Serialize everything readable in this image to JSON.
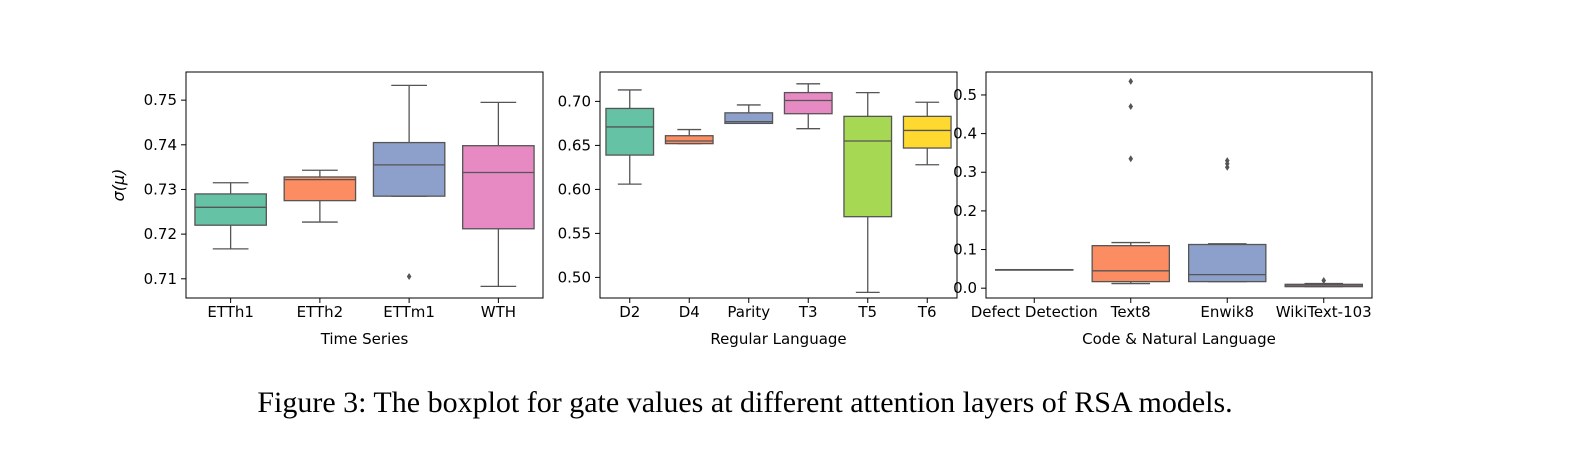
{
  "caption": "Figure 3: The boxplot for gate values at different attention layers of RSA models.",
  "chart_data": [
    {
      "type": "boxplot",
      "xlabel": "Time Series",
      "ylabel": "σ(μ)",
      "ylim": [
        0.7057,
        0.7563
      ],
      "yticks": [
        0.71,
        0.72,
        0.73,
        0.74,
        0.75
      ],
      "ytick_labels": [
        "0.71",
        "0.72",
        "0.73",
        "0.74",
        "0.75"
      ],
      "grid": false,
      "categories": [
        "ETTh1",
        "ETTh2",
        "ETTm1",
        "WTH"
      ],
      "colors": [
        "#66c2a5",
        "#fc8d62",
        "#8da0cb",
        "#e78ac3"
      ],
      "boxes": [
        {
          "whislo": 0.7167,
          "q1": 0.722,
          "med": 0.726,
          "q3": 0.729,
          "whishi": 0.7315,
          "fliers": []
        },
        {
          "whislo": 0.7227,
          "q1": 0.7275,
          "med": 0.7322,
          "q3": 0.7328,
          "whishi": 0.7343,
          "fliers": []
        },
        {
          "whislo": 0.7285,
          "q1": 0.7285,
          "med": 0.7355,
          "q3": 0.7405,
          "whishi": 0.7533,
          "fliers": [
            0.7105
          ]
        },
        {
          "whislo": 0.7083,
          "q1": 0.7212,
          "med": 0.7338,
          "q3": 0.7398,
          "whishi": 0.7495,
          "fliers": []
        }
      ]
    },
    {
      "type": "boxplot",
      "xlabel": "Regular Language",
      "ylabel": "",
      "ylim": [
        0.4766,
        0.7334
      ],
      "yticks": [
        0.5,
        0.55,
        0.6,
        0.65,
        0.7
      ],
      "ytick_labels": [
        "0.50",
        "0.55",
        "0.60",
        "0.65",
        "0.70"
      ],
      "grid": false,
      "categories": [
        "D2",
        "D4",
        "Parity",
        "T3",
        "T5",
        "T6"
      ],
      "colors": [
        "#66c2a5",
        "#fc8d62",
        "#8da0cb",
        "#e78ac3",
        "#a6d854",
        "#ffd92f"
      ],
      "boxes": [
        {
          "whislo": 0.606,
          "q1": 0.639,
          "med": 0.671,
          "q3": 0.692,
          "whishi": 0.713,
          "fliers": []
        },
        {
          "whislo": 0.652,
          "q1": 0.652,
          "med": 0.655,
          "q3": 0.661,
          "whishi": 0.668,
          "fliers": []
        },
        {
          "whislo": 0.675,
          "q1": 0.675,
          "med": 0.677,
          "q3": 0.687,
          "whishi": 0.696,
          "fliers": []
        },
        {
          "whislo": 0.669,
          "q1": 0.686,
          "med": 0.701,
          "q3": 0.71,
          "whishi": 0.72,
          "fliers": []
        },
        {
          "whislo": 0.483,
          "q1": 0.569,
          "med": 0.655,
          "q3": 0.683,
          "whishi": 0.71,
          "fliers": []
        },
        {
          "whislo": 0.628,
          "q1": 0.647,
          "med": 0.667,
          "q3": 0.683,
          "whishi": 0.699,
          "fliers": []
        }
      ]
    },
    {
      "type": "boxplot",
      "xlabel": "Code & Natural Language",
      "ylabel": "",
      "ylim": [
        -0.0254,
        0.5594
      ],
      "yticks": [
        0.0,
        0.1,
        0.2,
        0.3,
        0.4,
        0.5
      ],
      "ytick_labels": [
        "0.0",
        "0.1",
        "0.2",
        "0.3",
        "0.4",
        "0.5"
      ],
      "grid": false,
      "categories": [
        "Defect Detection",
        "Text8",
        "Enwik8",
        "WikiText-103"
      ],
      "colors": [
        "#66c2a5",
        "#fc8d62",
        "#8da0cb",
        "#e78ac3"
      ],
      "boxes": [
        {
          "whislo": 0.048,
          "q1": 0.048,
          "med": 0.048,
          "q3": 0.048,
          "whishi": 0.048,
          "fliers": []
        },
        {
          "whislo": 0.012,
          "q1": 0.017,
          "med": 0.045,
          "q3": 0.11,
          "whishi": 0.118,
          "fliers": [
            0.335,
            0.47,
            0.535
          ]
        },
        {
          "whislo": 0.017,
          "q1": 0.017,
          "med": 0.035,
          "q3": 0.113,
          "whishi": 0.115,
          "fliers": [
            0.313,
            0.322,
            0.33
          ]
        },
        {
          "whislo": 0.004,
          "q1": 0.004,
          "med": 0.006,
          "q3": 0.01,
          "whishi": 0.012,
          "fliers": [
            0.02
          ]
        }
      ]
    }
  ]
}
